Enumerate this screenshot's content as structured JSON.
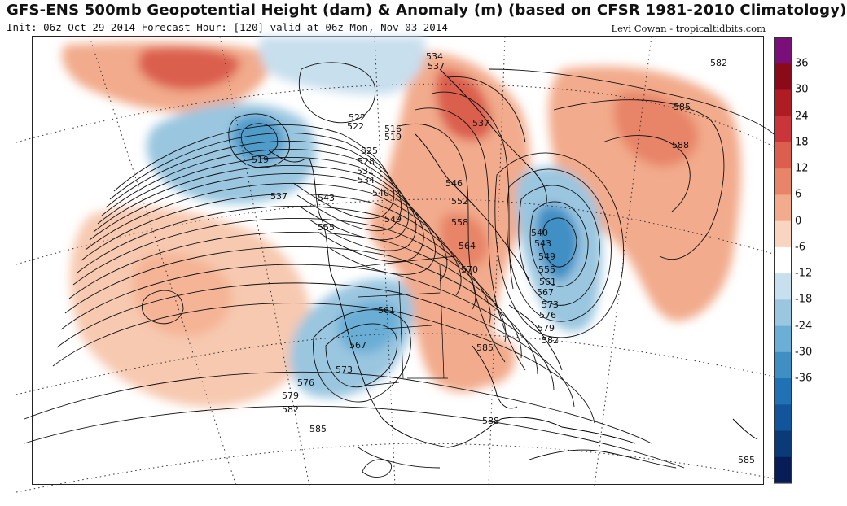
{
  "header": {
    "title": "GFS-ENS 500mb Geopotential Height (dam) & Anomaly (m) (based on CFSR 1981-2010 Climatology)",
    "subtitle": "Init: 06z Oct 29 2014 Forecast Hour: [120] valid at 06z Mon, Nov 03 2014",
    "credit": "Levi Cowan - tropicaltidbits.com"
  },
  "colorbar": {
    "ticks": [
      "36",
      "30",
      "24",
      "18",
      "12",
      "6",
      "0",
      "-6",
      "-12",
      "-18",
      "-24",
      "-30",
      "-36"
    ],
    "colors": [
      "#7a0f7a",
      "#8b0a1a",
      "#b01c24",
      "#c9353a",
      "#db5e4e",
      "#e88468",
      "#f2ab8c",
      "#f9d4c0",
      "#ffffff",
      "#c8dfee",
      "#9ac6e0",
      "#6baed6",
      "#3f8fc5",
      "#2171b5",
      "#13559a",
      "#0b3a78",
      "#081d58"
    ]
  },
  "map": {
    "contour_labels": [
      {
        "text": "534"
      },
      {
        "text": "537"
      },
      {
        "text": "582"
      },
      {
        "text": "585"
      },
      {
        "text": "588"
      },
      {
        "text": "522"
      },
      {
        "text": "522"
      },
      {
        "text": "516"
      },
      {
        "text": "519"
      },
      {
        "text": "519"
      },
      {
        "text": "525"
      },
      {
        "text": "528"
      },
      {
        "text": "531"
      },
      {
        "text": "534"
      },
      {
        "text": "537"
      },
      {
        "text": "540"
      },
      {
        "text": "543"
      },
      {
        "text": "546"
      },
      {
        "text": "549"
      },
      {
        "text": "552"
      },
      {
        "text": "555"
      },
      {
        "text": "558"
      },
      {
        "text": "564"
      },
      {
        "text": "570"
      },
      {
        "text": "540"
      },
      {
        "text": "543"
      },
      {
        "text": "549"
      },
      {
        "text": "555"
      },
      {
        "text": "561"
      },
      {
        "text": "567"
      },
      {
        "text": "573"
      },
      {
        "text": "576"
      },
      {
        "text": "579"
      },
      {
        "text": "582"
      },
      {
        "text": "561"
      },
      {
        "text": "567"
      },
      {
        "text": "573"
      },
      {
        "text": "576"
      },
      {
        "text": "579"
      },
      {
        "text": "582"
      },
      {
        "text": "585"
      },
      {
        "text": "585"
      },
      {
        "text": "588"
      },
      {
        "text": "585"
      },
      {
        "text": "537"
      }
    ]
  }
}
